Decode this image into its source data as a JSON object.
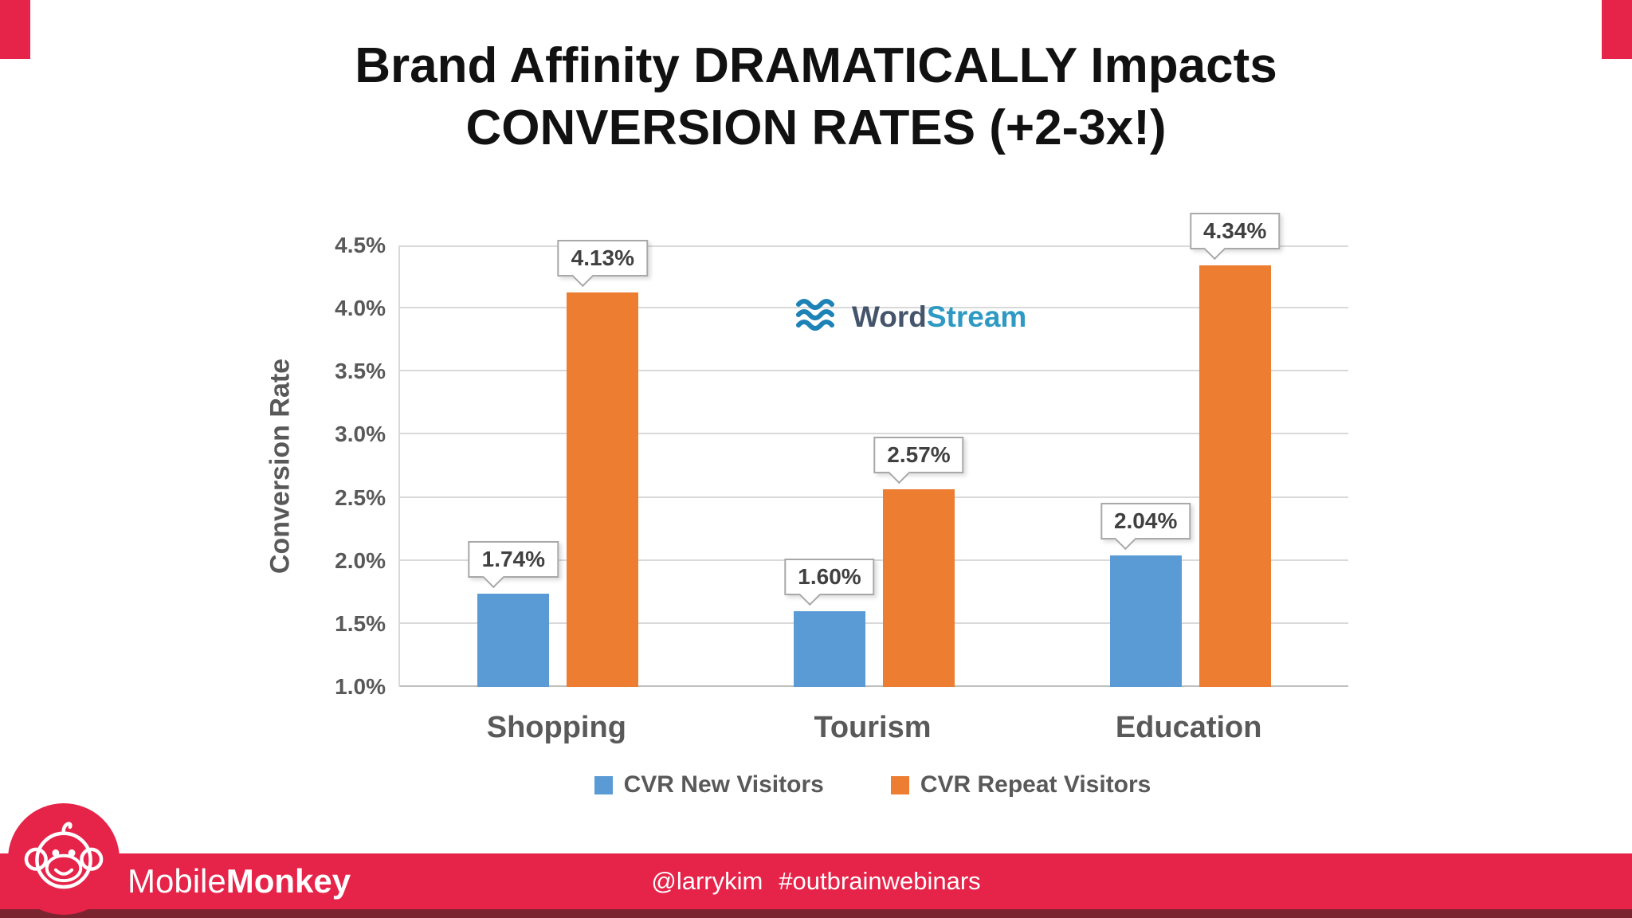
{
  "slide": {
    "title_line1": "Brand Affinity DRAMATICALLY Impacts",
    "title_line2": "CONVERSION RATES (+2-3x!)"
  },
  "chart_data": {
    "type": "bar",
    "title": "",
    "ylabel": "Conversion Rate",
    "categories": [
      "Shopping",
      "Tourism",
      "Education"
    ],
    "series": [
      {
        "name": "CVR New Visitors",
        "color": "#5B9BD5",
        "values": [
          1.74,
          1.6,
          2.04
        ],
        "labels": [
          "1.74%",
          "1.60%",
          "2.04%"
        ]
      },
      {
        "name": "CVR Repeat Visitors",
        "color": "#ED7D31",
        "values": [
          4.13,
          2.57,
          4.34
        ],
        "labels": [
          "4.13%",
          "2.57%",
          "4.34%"
        ]
      }
    ],
    "ylim": [
      1.0,
      4.5
    ],
    "ytick_step": 0.5,
    "yticks": [
      "1.0%",
      "1.5%",
      "2.0%",
      "2.5%",
      "3.0%",
      "3.5%",
      "4.0%",
      "4.5%"
    ],
    "grid": true,
    "legend_position": "bottom"
  },
  "watermark": {
    "word": "Word",
    "stream": "Stream"
  },
  "footer": {
    "brand_mobile": "Mobile",
    "brand_monkey": "Monkey",
    "handle": "@larrykim",
    "hashtag": "#outbrainwebinars"
  },
  "colors": {
    "bar_blue": "#5B9BD5",
    "bar_orange": "#ED7D31",
    "band_red": "#E62349",
    "band_dark": "#79242F",
    "gridline": "#D9D9D9",
    "axis_text": "#595959"
  }
}
